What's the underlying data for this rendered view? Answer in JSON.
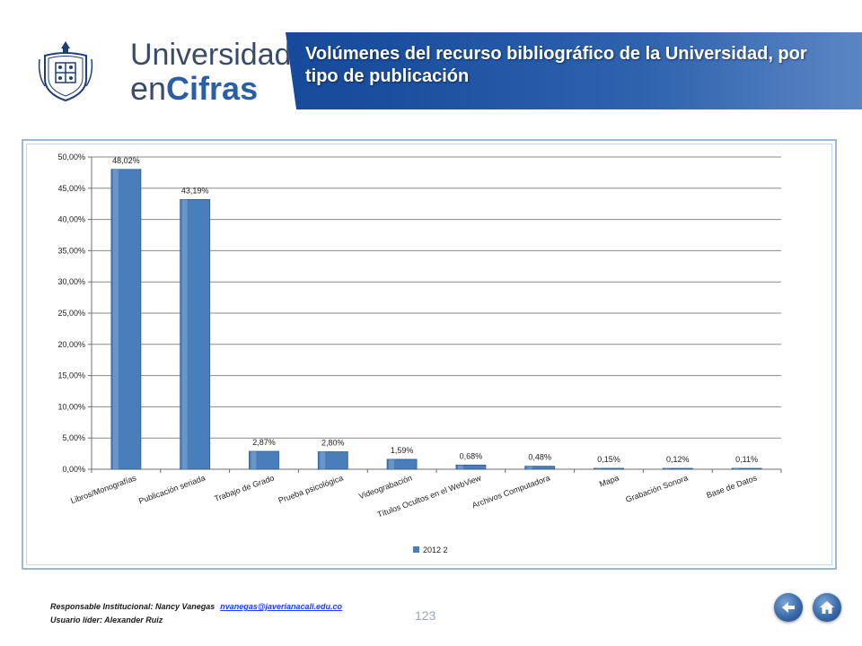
{
  "header": {
    "brand_line1": "Universidad",
    "brand_line2_prefix": "en",
    "brand_line2_accent": "Cifras",
    "title": "Volúmenes del recurso bibliográfico de la Universidad, por tipo de publicación"
  },
  "chart_data": {
    "type": "bar",
    "categories": [
      "Libros/Monografías",
      "Publicación seriada",
      "Trabajo de Grado",
      "Prueba psicológica",
      "Videograbación",
      "Títulos Ocultos en el WebView",
      "Archivos Computadora",
      "Mapa",
      "Grabación Sonora",
      "Base de Datos"
    ],
    "series": [
      {
        "name": "2012 2",
        "values": [
          48.02,
          43.19,
          2.87,
          2.8,
          1.59,
          0.68,
          0.48,
          0.15,
          0.12,
          0.11
        ]
      }
    ],
    "data_labels": [
      "48,02%",
      "43,19%",
      "2,87%",
      "2,80%",
      "1,59%",
      "0,68%",
      "0,48%",
      "0,15%",
      "0,12%",
      "0,11%"
    ],
    "y_ticks": [
      0,
      5,
      10,
      15,
      20,
      25,
      30,
      35,
      40,
      45,
      50
    ],
    "y_tick_labels": [
      "0,00%",
      "5,00%",
      "10,00%",
      "15,00%",
      "20,00%",
      "25,00%",
      "30,00%",
      "35,00%",
      "40,00%",
      "45,00%",
      "50,00%"
    ],
    "ylim": [
      0,
      50
    ],
    "grid": true,
    "legend_position": "bottom",
    "bar_color": "#4a7ebb"
  },
  "footer": {
    "responsible_label": "Responsable Institucional: Nancy Vanegas",
    "responsible_email": "nvanegas@javerianacali.edu.co",
    "leader_label": "Usuario líder: Alexander Ruiz",
    "page_number": "123"
  },
  "nav": {
    "back_icon": "back-arrow-icon",
    "home_icon": "home-icon"
  }
}
